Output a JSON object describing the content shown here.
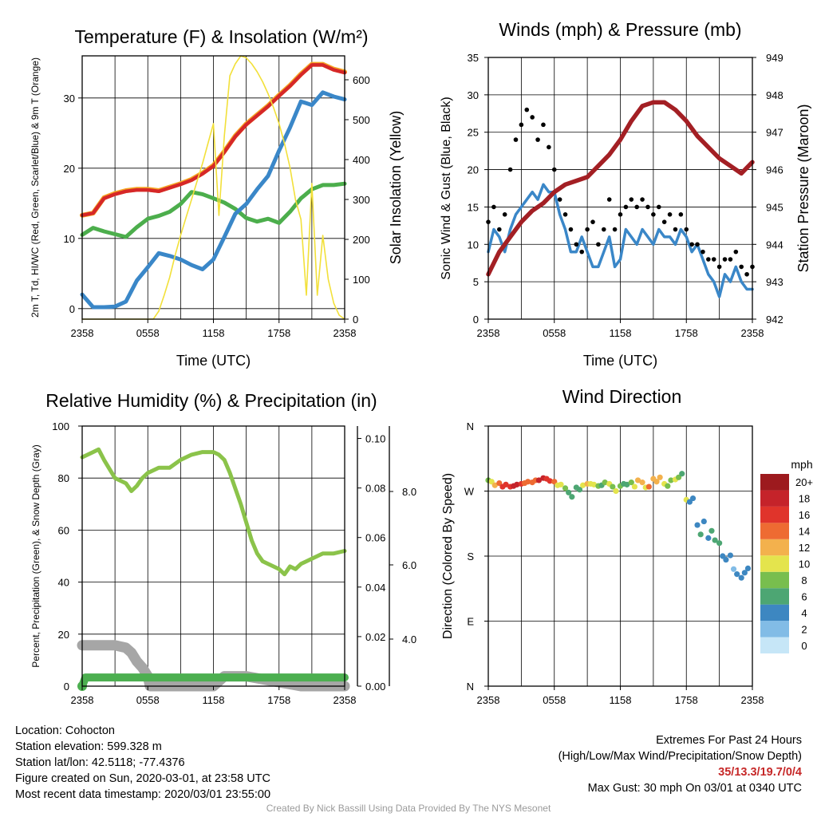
{
  "chart_data": [
    {
      "type": "line",
      "title": "Temperature (F) & Insolation (W/m²)",
      "xlabel": "Time (UTC)",
      "ylabel": "2m T, Td, HI/WC (Red, Green, Scarlet/Blue) & 9m T (Orange)",
      "ylabel_right": "Solar Insolation (Yellow)",
      "x_ticks": [
        "2358",
        "0558",
        "1158",
        "1758",
        "2358"
      ],
      "ylim": [
        -1.5,
        36
      ],
      "y_ticks": [
        0,
        10,
        20,
        30
      ],
      "ylim_right": [
        0,
        660
      ],
      "y_ticks_right": [
        0,
        100,
        200,
        300,
        400,
        500,
        600
      ],
      "grid": true,
      "series": [
        {
          "color": "#f5a623",
          "axis": "left",
          "x": [
            0,
            1,
            2,
            3,
            4,
            5,
            6,
            7,
            8,
            9,
            10,
            11,
            12,
            13,
            14,
            15,
            16,
            17,
            18,
            19,
            20,
            21,
            22,
            23,
            24
          ],
          "values": [
            13.3,
            13.6,
            15.8,
            16.4,
            16.8,
            17.0,
            17.0,
            16.8,
            17.3,
            17.8,
            18.4,
            19.3,
            20.4,
            22.4,
            24.6,
            26.3,
            27.6,
            28.9,
            30.4,
            31.8,
            33.4,
            34.8,
            34.8,
            34.1,
            33.7
          ]
        },
        {
          "color": "#d62728",
          "axis": "left",
          "x": [
            0,
            1,
            2,
            3,
            4,
            5,
            6,
            7,
            8,
            9,
            10,
            11,
            12,
            13,
            14,
            15,
            16,
            17,
            18,
            19,
            20,
            21,
            22,
            23,
            24
          ],
          "values": [
            13.3,
            13.6,
            15.7,
            16.3,
            16.7,
            16.9,
            16.9,
            16.7,
            17.2,
            17.7,
            18.3,
            19.2,
            20.3,
            22.3,
            24.5,
            26.2,
            27.5,
            28.8,
            30.3,
            31.7,
            33.3,
            34.7,
            34.7,
            34.0,
            33.6
          ]
        },
        {
          "color": "#4cae4c",
          "axis": "left",
          "x": [
            0,
            1,
            2,
            3,
            4,
            5,
            6,
            7,
            8,
            9,
            10,
            11,
            12,
            13,
            14,
            15,
            16,
            17,
            18,
            19,
            20,
            21,
            22,
            23,
            24
          ],
          "values": [
            10.5,
            11.5,
            11.0,
            10.6,
            10.2,
            11.6,
            12.8,
            13.2,
            13.8,
            14.9,
            16.6,
            16.3,
            15.7,
            15.1,
            14.2,
            12.9,
            12.4,
            12.8,
            12.2,
            13.8,
            15.7,
            17.0,
            17.6,
            17.6,
            17.8
          ]
        },
        {
          "color": "#3a87c8",
          "axis": "left",
          "x": [
            0,
            1,
            2,
            3,
            4,
            5,
            6,
            7,
            8,
            9,
            10,
            11,
            12,
            13,
            14,
            15,
            16,
            17,
            18,
            19,
            20,
            21,
            22,
            23,
            24
          ],
          "values": [
            2.0,
            0.2,
            0.2,
            0.3,
            1.0,
            4.0,
            5.9,
            7.9,
            7.5,
            7.0,
            6.2,
            5.6,
            7.0,
            10.2,
            13.5,
            14.9,
            17.0,
            18.9,
            22.5,
            25.8,
            29.5,
            29.0,
            30.8,
            30.2,
            29.8
          ]
        },
        {
          "color": "#f2e03a",
          "axis": "right",
          "x": [
            0,
            6.5,
            7.0,
            7.5,
            8.0,
            8.5,
            9.0,
            9.5,
            10.0,
            10.5,
            11.0,
            11.5,
            12.0,
            12.5,
            13.0,
            13.5,
            14.0,
            14.5,
            15.0,
            15.5,
            16.0,
            16.5,
            17.0,
            17.5,
            18.0,
            18.5,
            19.0,
            19.5,
            20.0,
            20.5,
            21.0,
            21.5,
            22.0,
            22.5,
            23.0,
            23.5,
            24.0
          ],
          "values": [
            0,
            0,
            20,
            60,
            105,
            160,
            210,
            255,
            300,
            345,
            390,
            440,
            490,
            260,
            460,
            610,
            640,
            660,
            655,
            640,
            620,
            595,
            565,
            530,
            490,
            440,
            380,
            300,
            250,
            60,
            340,
            60,
            210,
            100,
            40,
            10,
            0
          ]
        }
      ]
    },
    {
      "type": "line",
      "title": "Winds (mph) & Pressure (mb)",
      "xlabel": "Time (UTC)",
      "ylabel": "Sonic Wind & Gust (Blue, Black)",
      "ylabel_right": "Station Pressure (Maroon)",
      "x_ticks": [
        "2358",
        "0558",
        "1158",
        "1758",
        "2358"
      ],
      "ylim": [
        0,
        35
      ],
      "y_ticks": [
        0,
        5,
        10,
        15,
        20,
        25,
        30,
        35
      ],
      "ylim_right": [
        942,
        949
      ],
      "y_ticks_right": [
        942,
        943,
        944,
        945,
        946,
        947,
        948,
        949
      ],
      "grid": true,
      "series": [
        {
          "color": "#3a87c8",
          "axis": "left",
          "x": [
            0,
            0.5,
            1,
            1.5,
            2,
            2.5,
            3,
            3.5,
            4,
            4.5,
            5,
            5.5,
            6,
            6.5,
            7,
            7.5,
            8,
            8.5,
            9,
            9.5,
            10,
            10.5,
            11,
            11.5,
            12,
            12.5,
            13,
            13.5,
            14,
            14.5,
            15,
            15.5,
            16,
            16.5,
            17,
            17.5,
            18,
            18.5,
            19,
            19.5,
            20,
            20.5,
            21,
            21.5,
            22,
            22.5,
            23,
            23.5,
            24
          ],
          "values": [
            9,
            12,
            11,
            9,
            12,
            14,
            15,
            16,
            17,
            16,
            18,
            17,
            17,
            14,
            12,
            9,
            9,
            11,
            9,
            7,
            7,
            9,
            11,
            7,
            8,
            12,
            11,
            10,
            12,
            11,
            10,
            12,
            11,
            11,
            10,
            12,
            11,
            9,
            10,
            8,
            6,
            5,
            3,
            6,
            5,
            7,
            5,
            4,
            4
          ]
        },
        {
          "color": "#000000",
          "axis": "left",
          "x": [
            0,
            0.5,
            1,
            1.5,
            2,
            2.5,
            3,
            3.5,
            4,
            4.5,
            5,
            5.5,
            6,
            6.5,
            7,
            7.5,
            8,
            8.5,
            9,
            9.5,
            10,
            10.5,
            11,
            11.5,
            12,
            12.5,
            13,
            13.5,
            14,
            14.5,
            15,
            15.5,
            16,
            16.5,
            17,
            17.5,
            18,
            18.5,
            19,
            19.5,
            20,
            20.5,
            21,
            21.5,
            22,
            22.5,
            23,
            23.5,
            24
          ],
          "values": [
            13,
            15,
            12,
            14,
            20,
            24,
            26,
            28,
            27,
            24,
            26,
            23,
            20,
            16,
            14,
            12,
            10,
            9,
            12,
            13,
            10,
            12,
            16,
            12,
            14,
            15,
            16,
            15,
            16,
            15,
            14,
            15,
            13,
            14,
            12,
            14,
            12,
            10,
            10,
            9,
            8,
            8,
            7,
            8,
            8,
            9,
            7,
            6,
            7
          ]
        },
        {
          "color": "#a31f24",
          "axis": "right",
          "x": [
            0,
            1,
            2,
            3,
            4,
            5,
            6,
            7,
            8,
            9,
            10,
            11,
            12,
            13,
            14,
            15,
            16,
            17,
            18,
            19,
            20,
            21,
            22,
            23,
            24
          ],
          "values": [
            943.2,
            943.8,
            944.2,
            944.6,
            944.9,
            945.1,
            945.4,
            945.6,
            945.7,
            945.8,
            946.1,
            946.4,
            946.8,
            947.3,
            947.7,
            947.8,
            947.8,
            947.6,
            947.3,
            946.9,
            946.6,
            946.3,
            946.1,
            945.9,
            946.2
          ]
        }
      ]
    },
    {
      "type": "line",
      "title": "Relative Humidity (%) & Precipitation (in)",
      "ylabel": "Percent, Precipitation (Green), & Snow Depth (Gray)",
      "x_ticks": [
        "2358",
        "0558",
        "1158",
        "1758",
        "2358"
      ],
      "ylim": [
        0,
        100
      ],
      "y_ticks": [
        0,
        20,
        40,
        60,
        80,
        100
      ],
      "ylim_right": [
        0.0,
        0.105
      ],
      "y_ticks_right": [
        "0.00",
        "0.02",
        "0.04",
        "0.06",
        "0.08",
        "0.10"
      ],
      "y_ticks_snow": [
        "4.0",
        "6.0",
        "8.0"
      ],
      "grid": true,
      "series": [
        {
          "color": "#8bc34a",
          "axis": "left",
          "x": [
            0,
            1,
            1.5,
            2,
            3,
            3.5,
            4,
            4.5,
            5,
            5.5,
            6,
            7,
            8,
            9,
            10,
            11,
            12,
            12.5,
            13,
            13.5,
            14,
            14.5,
            15,
            15.5,
            16,
            16.5,
            17,
            17.5,
            18,
            18.5,
            19,
            19.5,
            20,
            21,
            22,
            23,
            24
          ],
          "values": [
            88,
            90,
            91,
            87,
            80,
            79,
            78,
            75,
            77,
            80,
            82,
            84,
            84,
            87,
            89,
            90,
            90,
            89,
            87,
            82,
            76,
            70,
            63,
            56,
            51,
            48,
            47,
            46,
            45,
            43,
            46,
            45,
            47,
            49,
            51,
            51,
            52
          ]
        },
        {
          "color": "#4caf50",
          "axis": "right",
          "x": [
            0,
            0.3,
            24
          ],
          "values": [
            0.0,
            0.0035,
            0.0035
          ]
        },
        {
          "color": "#a6a6a6",
          "axis": "right",
          "x": [
            0,
            1,
            2,
            3,
            4,
            4.5,
            5,
            5.5,
            6,
            6.2,
            7,
            10,
            11,
            12,
            13,
            13.5,
            14,
            15,
            20,
            24
          ],
          "values": [
            0.0165,
            0.0165,
            0.0165,
            0.0165,
            0.0155,
            0.0135,
            0.01,
            0.0075,
            0.004,
            0,
            0,
            0,
            0,
            0,
            0.004,
            0.004,
            0.004,
            0.004,
            0,
            0
          ]
        }
      ]
    },
    {
      "type": "scatter",
      "title": "Wind Direction",
      "ylabel": "Direction (Colored By Speed)",
      "x_ticks": [
        "2358",
        "0558",
        "1158",
        "1758",
        "2358"
      ],
      "y_ticks": [
        "N",
        "E",
        "S",
        "W",
        "N"
      ],
      "ylim": [
        0,
        360
      ],
      "grid": true,
      "legend_title": "mph",
      "legend_labels": [
        "0",
        "2",
        "4",
        "6",
        "8",
        "10",
        "12",
        "14",
        "16",
        "18",
        "20+"
      ],
      "legend_colors": [
        "#c6e6f7",
        "#82bce6",
        "#3d87c1",
        "#4da673",
        "#78be4e",
        "#e4e44d",
        "#f3b14d",
        "#ee6b32",
        "#e0342b",
        "#c5232a",
        "#9d1a1e"
      ],
      "points": {
        "x": [
          0,
          0.3,
          0.6,
          1,
          1.3,
          1.6,
          2,
          2.3,
          2.6,
          3,
          3.3,
          3.6,
          4,
          4.3,
          4.6,
          5,
          5.3,
          5.6,
          6,
          6.3,
          6.6,
          7,
          7.3,
          7.6,
          8,
          8.3,
          8.6,
          9,
          9.3,
          9.6,
          10,
          10.3,
          10.6,
          11,
          11.3,
          11.6,
          12,
          12.3,
          12.6,
          13,
          13.3,
          13.6,
          14,
          14.3,
          14.6,
          15,
          15.3,
          15.6,
          16,
          16.3,
          16.6,
          17,
          17.3,
          17.6,
          18,
          18.3,
          18.6,
          19,
          19.3,
          19.6,
          20,
          20.3,
          20.6,
          21,
          21.3,
          21.6,
          22,
          22.3,
          22.6,
          23,
          23.3,
          23.6
        ],
        "dir": [
          285,
          283,
          278,
          281,
          276,
          279,
          276,
          277,
          279,
          280,
          281,
          283,
          282,
          285,
          285,
          288,
          287,
          284,
          283,
          278,
          279,
          274,
          268,
          262,
          275,
          272,
          278,
          280,
          280,
          279,
          277,
          278,
          282,
          280,
          276,
          270,
          277,
          280,
          279,
          282,
          276,
          285,
          282,
          275,
          276,
          287,
          283,
          289,
          280,
          277,
          285,
          286,
          289,
          294,
          258,
          255,
          260,
          223,
          210,
          228,
          205,
          215,
          202,
          198,
          180,
          175,
          181,
          162,
          155,
          150,
          157,
          163
        ],
        "speed": [
          7,
          10,
          11,
          13,
          15,
          16,
          16,
          17,
          17,
          16,
          14,
          13,
          13,
          14,
          17,
          17,
          16,
          15,
          14,
          10,
          9,
          8,
          6,
          5,
          6,
          5,
          10,
          11,
          10,
          9,
          7,
          6,
          7,
          9,
          8,
          10,
          7,
          6,
          6,
          7,
          9,
          12,
          11,
          10,
          13,
          12,
          11,
          12,
          10,
          8,
          7,
          9,
          7,
          6,
          9,
          4,
          3,
          4,
          5,
          3,
          4,
          6,
          5,
          5,
          4,
          3,
          3,
          2,
          4,
          3,
          4,
          3
        ]
      }
    }
  ],
  "info_left": [
    "Location: Cohocton",
    "Station elevation: 599.328 m",
    "Station lat/lon: 42.5118; -77.4376",
    "Figure created on Sun, 2020-03-01, at 23:58 UTC",
    "Most recent data timestamp: 2020/03/01 23:55:00"
  ],
  "extremes": {
    "title": "Extremes For Past 24 Hours",
    "subtitle": "(High/Low/Max Wind/Precipitation/Snow Depth)",
    "values": "35/13.3/19.7/0/4",
    "max_gust": "Max Gust: 30 mph On 03/01 at 0340 UTC"
  },
  "credit": "Created By Nick Bassill Using Data Provided By The NYS Mesonet"
}
